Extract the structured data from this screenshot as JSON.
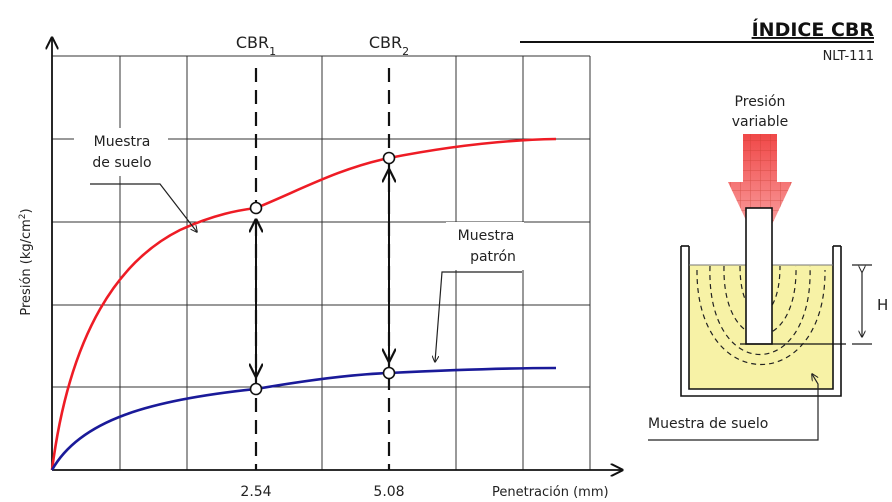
{
  "title": {
    "main": "ÍNDICE CBR",
    "code": "NLT-111"
  },
  "chart_data": {
    "type": "line",
    "ylabel_main": "Presión (kg/cm",
    "ylabel_sup": "2",
    "ylabel_end": ")",
    "xlabel": "Penetración (mm)",
    "xticks": [
      "2.54",
      "5.08"
    ],
    "cbr_markers": [
      {
        "main": "CBR",
        "sub": "1",
        "x": 2.54
      },
      {
        "main": "CBR",
        "sub": "2",
        "x": 5.08
      }
    ],
    "series": [
      {
        "color": "#ee1c25",
        "points_at_markers": [
          {
            "x": 2.54,
            "y": 0.66
          },
          {
            "x": 5.08,
            "y": 0.8
          }
        ]
      },
      {
        "color": "#1a1a99",
        "points_at_markers": [
          {
            "x": 2.54,
            "y": 0.14
          },
          {
            "x": 5.08,
            "y": 0.2
          }
        ]
      }
    ],
    "grid": true
  },
  "annotations": {
    "soil_line1": "Muestra",
    "soil_line2": "de suelo",
    "standard_line1": "Muestra",
    "standard_line2": "patrón"
  },
  "apparatus": {
    "pressure_line1": "Presión",
    "pressure_line2": "variable",
    "height_label": "H",
    "sample_label": "Muestra de suelo"
  },
  "colors": {
    "soil_curve": "#ee1c25",
    "standard_curve": "#1a1a99",
    "sample_fill": "#f7f2a6",
    "arrow_fill": "#f47a7a"
  }
}
